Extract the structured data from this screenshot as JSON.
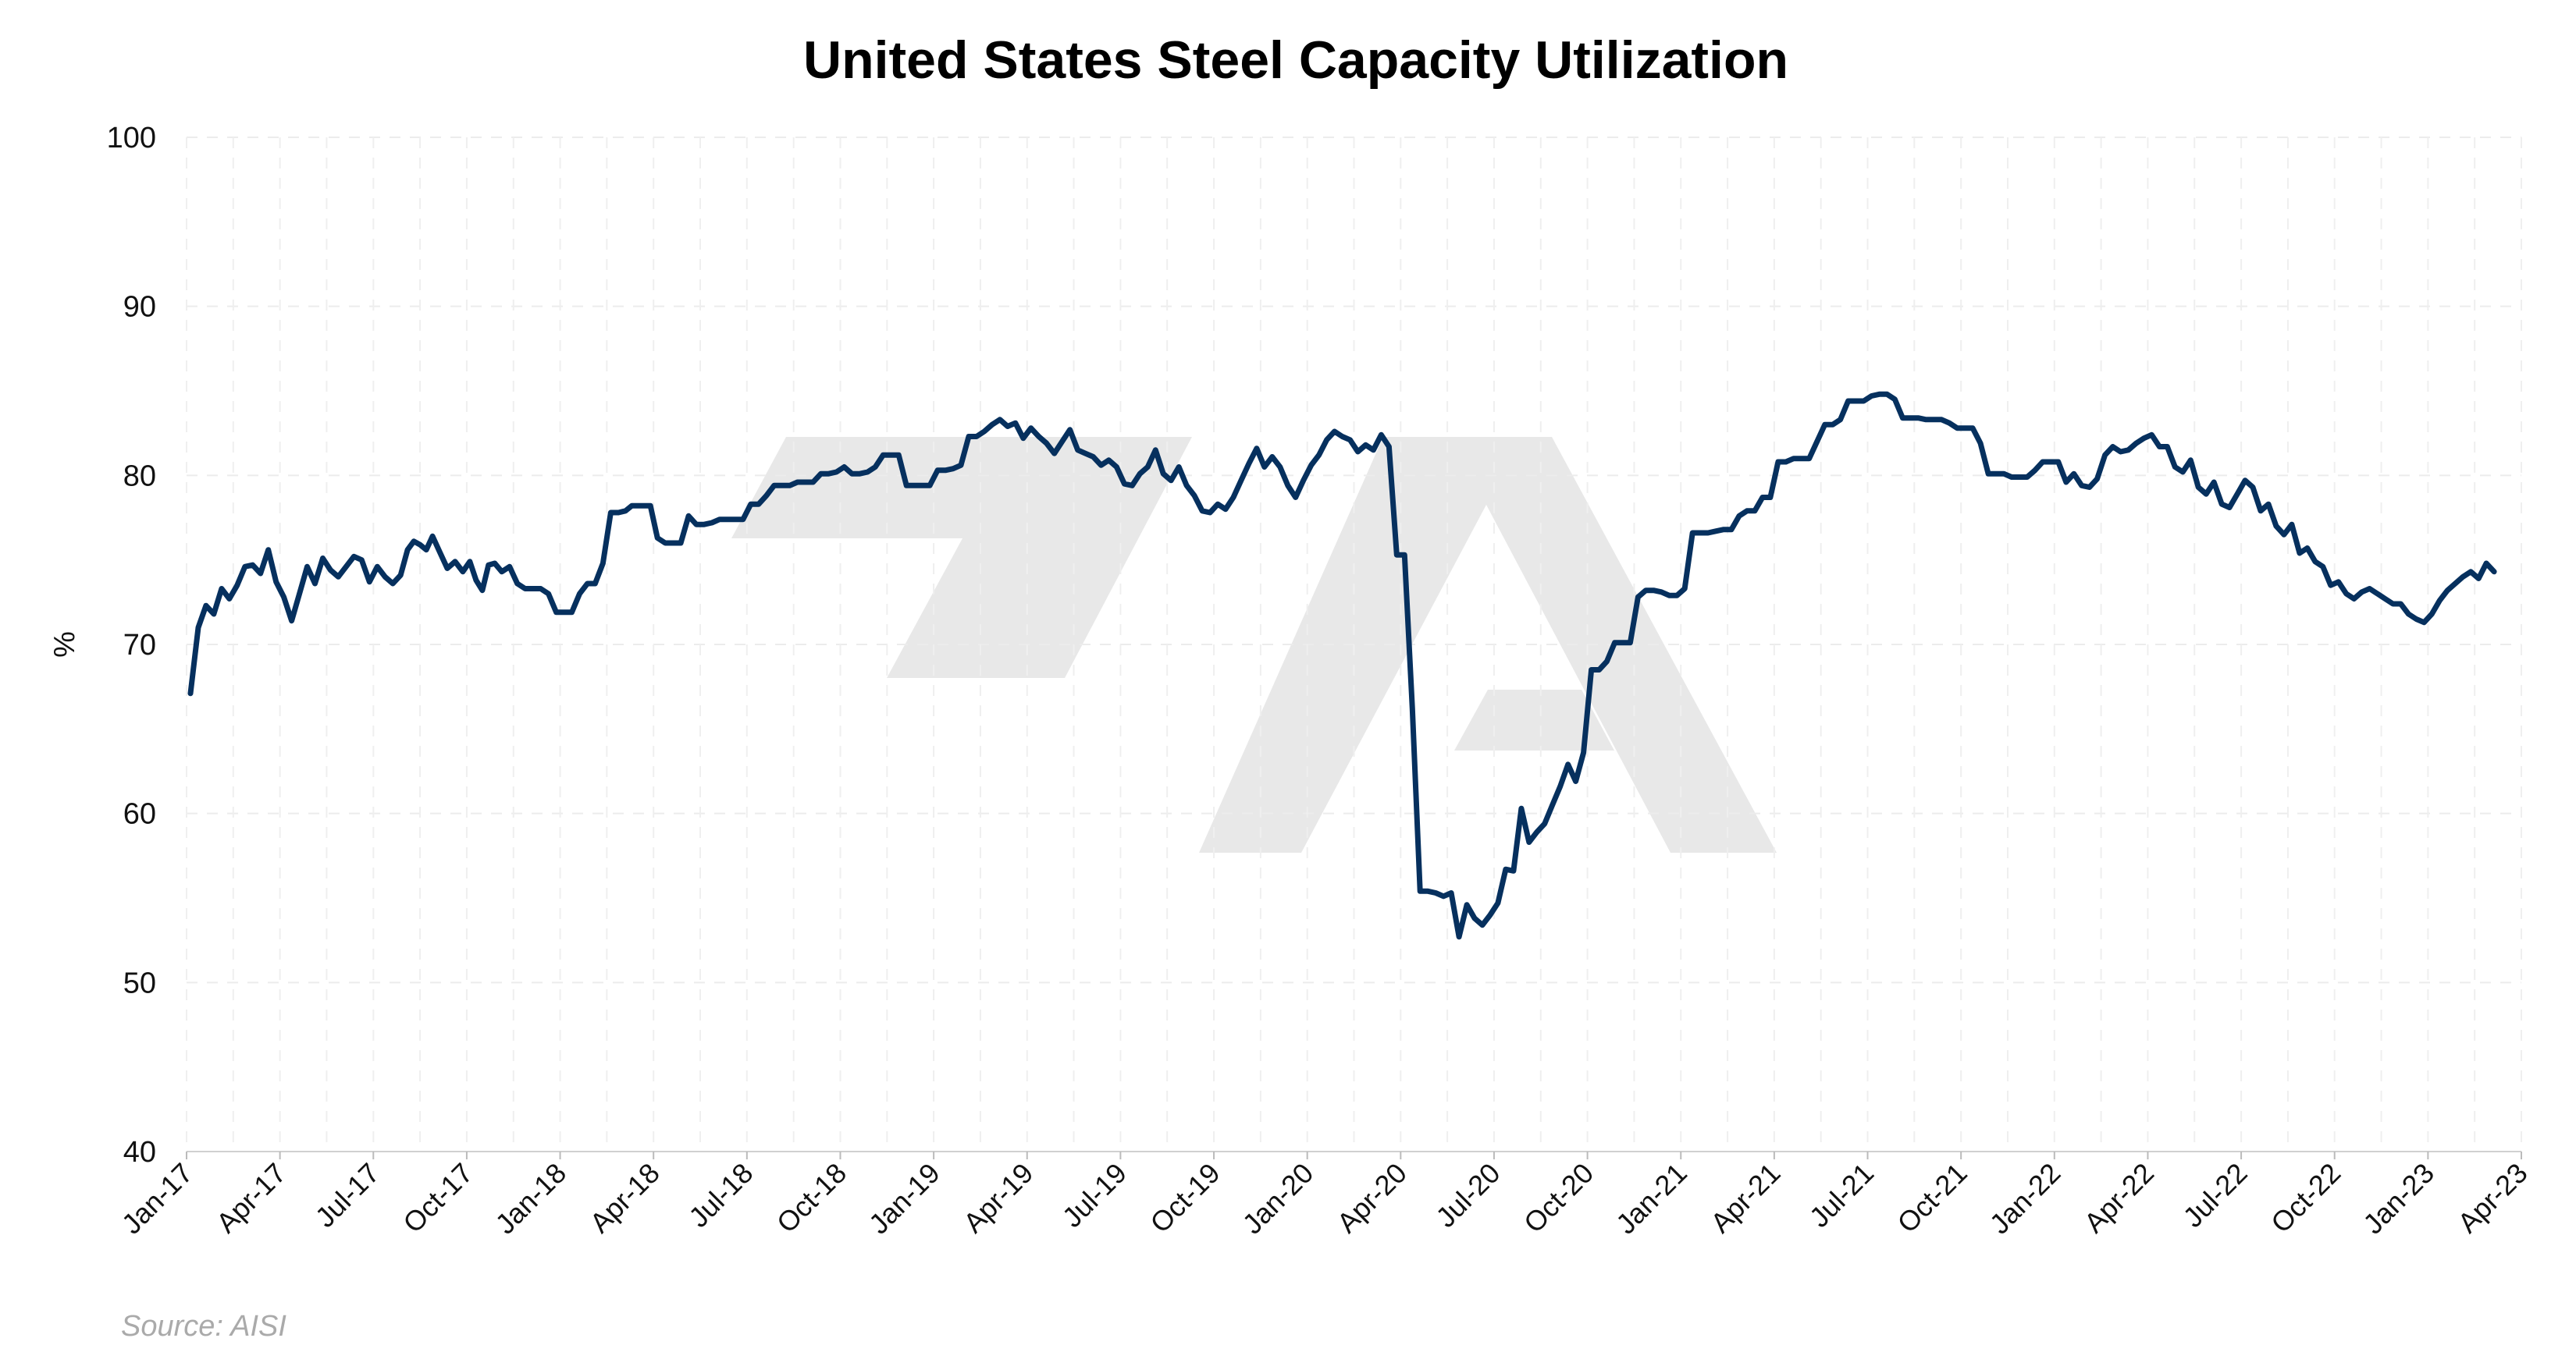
{
  "chart_data": {
    "type": "line",
    "title": "United States Steel Capacity Utilization",
    "xlabel": "",
    "ylabel": "%",
    "ylim": [
      40,
      100
    ],
    "yticks": [
      40,
      50,
      60,
      70,
      80,
      90,
      100
    ],
    "xlim": [
      "2017-01",
      "2023-04"
    ],
    "xticks": [
      {
        "date": "2017-01",
        "label": "Jan-17"
      },
      {
        "date": "2017-04",
        "label": "Apr-17"
      },
      {
        "date": "2017-07",
        "label": "Jul-17"
      },
      {
        "date": "2017-10",
        "label": "Oct-17"
      },
      {
        "date": "2018-01",
        "label": "Jan-18"
      },
      {
        "date": "2018-04",
        "label": "Apr-18"
      },
      {
        "date": "2018-07",
        "label": "Jul-18"
      },
      {
        "date": "2018-10",
        "label": "Oct-18"
      },
      {
        "date": "2019-01",
        "label": "Jan-19"
      },
      {
        "date": "2019-04",
        "label": "Apr-19"
      },
      {
        "date": "2019-07",
        "label": "Jul-19"
      },
      {
        "date": "2019-10",
        "label": "Oct-19"
      },
      {
        "date": "2020-01",
        "label": "Jan-20"
      },
      {
        "date": "2020-04",
        "label": "Apr-20"
      },
      {
        "date": "2020-07",
        "label": "Jul-20"
      },
      {
        "date": "2020-10",
        "label": "Oct-20"
      },
      {
        "date": "2021-01",
        "label": "Jan-21"
      },
      {
        "date": "2021-04",
        "label": "Apr-21"
      },
      {
        "date": "2021-07",
        "label": "Jul-21"
      },
      {
        "date": "2021-10",
        "label": "Oct-21"
      },
      {
        "date": "2022-01",
        "label": "Jan-22"
      },
      {
        "date": "2022-04",
        "label": "Apr-22"
      },
      {
        "date": "2022-07",
        "label": "Jul-22"
      },
      {
        "date": "2022-10",
        "label": "Oct-22"
      },
      {
        "date": "2023-01",
        "label": "Jan-23"
      },
      {
        "date": "2023-04",
        "label": "Apr-23"
      }
    ],
    "grid": true,
    "line_color": "#06305e",
    "series": [
      {
        "weekly_values_by_month": [
          [
            "2017-01",
            [
              67.1,
              71.0,
              72.3,
              71.8
            ]
          ],
          [
            "2017-02",
            [
              73.3,
              72.7,
              73.5,
              74.6
            ]
          ],
          [
            "2017-03",
            [
              74.7,
              74.2,
              75.6,
              73.7
            ]
          ],
          [
            "2017-04",
            [
              72.8,
              71.4,
              73.0,
              74.6
            ]
          ],
          [
            "2017-05",
            [
              73.6,
              75.1,
              74.4,
              74.0
            ]
          ],
          [
            "2017-06",
            [
              74.6,
              75.2,
              75.0,
              73.7
            ]
          ],
          [
            "2017-07",
            [
              74.6,
              74.0,
              73.6,
              74.1
            ]
          ],
          [
            "2017-08",
            [
              75.6,
              76.1,
              75.9,
              75.6,
              76.4
            ]
          ],
          [
            "2017-09",
            [
              75.5,
              74.5,
              74.9,
              74.3
            ]
          ],
          [
            "2017-10",
            [
              74.9,
              73.8,
              73.2,
              74.7,
              74.8
            ]
          ],
          [
            "2017-11",
            [
              74.3,
              74.6,
              73.6,
              73.3
            ]
          ],
          [
            "2017-12",
            [
              73.3,
              73.3,
              73.0,
              71.9
            ]
          ],
          [
            "2018-01",
            [
              71.9,
              71.9,
              73.0,
              73.6
            ]
          ],
          [
            "2018-02",
            [
              73.6,
              74.8,
              77.8,
              77.8
            ]
          ],
          [
            "2018-03",
            [
              77.9,
              78.2,
              78.2,
              78.2,
              78.2
            ]
          ],
          [
            "2018-04",
            [
              76.3,
              76.0,
              76.0,
              76.0
            ]
          ],
          [
            "2018-05",
            [
              77.6,
              77.1,
              77.1,
              77.2
            ]
          ],
          [
            "2018-06",
            [
              77.4,
              77.4,
              77.4,
              77.4
            ]
          ],
          [
            "2018-07",
            [
              78.3,
              78.3,
              78.8,
              79.4
            ]
          ],
          [
            "2018-08",
            [
              79.4,
              79.4,
              79.6,
              79.6
            ]
          ],
          [
            "2018-09",
            [
              79.6,
              80.1,
              80.1,
              80.2
            ]
          ],
          [
            "2018-10",
            [
              80.5,
              80.1,
              80.1,
              80.2
            ]
          ],
          [
            "2018-11",
            [
              80.5,
              81.2,
              81.2,
              81.2
            ]
          ],
          [
            "2018-12",
            [
              79.4,
              79.4,
              79.4,
              79.4
            ]
          ],
          [
            "2019-01",
            [
              80.3,
              80.3,
              80.4,
              80.6
            ]
          ],
          [
            "2019-02",
            [
              82.3,
              82.3,
              82.6,
              83.0
            ]
          ],
          [
            "2019-03",
            [
              83.3,
              82.9,
              83.1,
              82.2
            ]
          ],
          [
            "2019-04",
            [
              82.8,
              82.3,
              81.9,
              81.3
            ]
          ],
          [
            "2019-05",
            [
              82.0,
              82.7,
              81.5,
              81.3
            ]
          ],
          [
            "2019-06",
            [
              81.1,
              80.6,
              80.9,
              80.5
            ]
          ],
          [
            "2019-07",
            [
              79.5,
              79.4,
              80.1,
              80.5
            ]
          ],
          [
            "2019-08",
            [
              81.5,
              80.1,
              79.7,
              80.5
            ]
          ],
          [
            "2019-09",
            [
              79.4,
              78.8,
              77.9,
              77.8
            ]
          ],
          [
            "2019-10",
            [
              78.3,
              78.0,
              78.7,
              79.7
            ]
          ],
          [
            "2019-11",
            [
              80.7,
              81.6,
              80.5,
              81.1
            ]
          ],
          [
            "2019-12",
            [
              80.5,
              79.4,
              78.7,
              79.7
            ]
          ],
          [
            "2020-01",
            [
              80.6,
              81.2,
              82.1,
              82.6
            ]
          ],
          [
            "2020-02",
            [
              82.3,
              82.1,
              81.4,
              81.8
            ]
          ],
          [
            "2020-03",
            [
              81.5,
              82.4,
              81.7,
              75.3
            ]
          ],
          [
            "2020-04",
            [
              75.3,
              66.2,
              55.4,
              55.4
            ]
          ],
          [
            "2020-05",
            [
              55.3,
              55.1,
              55.3,
              52.7
            ]
          ],
          [
            "2020-06",
            [
              54.6,
              53.8,
              53.4,
              54.0
            ]
          ],
          [
            "2020-07",
            [
              54.7,
              56.7,
              56.6,
              60.3
            ]
          ],
          [
            "2020-08",
            [
              58.3,
              58.9,
              59.4,
              60.5
            ]
          ],
          [
            "2020-09",
            [
              61.6,
              62.9,
              61.9,
              63.6
            ]
          ],
          [
            "2020-10",
            [
              68.5,
              68.5,
              69.0,
              70.1
            ]
          ],
          [
            "2020-11",
            [
              70.1,
              70.1,
              72.8,
              73.2
            ]
          ],
          [
            "2020-12",
            [
              73.2,
              73.1,
              72.9,
              72.9
            ]
          ],
          [
            "2021-01",
            [
              73.3,
              76.6,
              76.6,
              76.6
            ]
          ],
          [
            "2021-02",
            [
              76.7,
              76.8,
              76.8,
              77.6
            ]
          ],
          [
            "2021-03",
            [
              77.9,
              77.9,
              78.7,
              78.7
            ]
          ],
          [
            "2021-04",
            [
              80.8,
              80.8,
              81.0,
              81.0
            ]
          ],
          [
            "2021-05",
            [
              81.0,
              82.0,
              83.0,
              83.0
            ]
          ],
          [
            "2021-06",
            [
              83.3,
              84.4,
              84.4,
              84.4
            ]
          ],
          [
            "2021-07",
            [
              84.7,
              84.8,
              84.8,
              84.5
            ]
          ],
          [
            "2021-08",
            [
              83.4,
              83.4,
              83.4,
              83.3
            ]
          ],
          [
            "2021-09",
            [
              83.3,
              83.3,
              83.1,
              82.8
            ]
          ],
          [
            "2021-10",
            [
              82.8,
              82.8,
              81.9,
              80.1
            ]
          ],
          [
            "2021-11",
            [
              80.1,
              80.1,
              79.9,
              79.9
            ]
          ],
          [
            "2021-12",
            [
              79.9,
              80.3,
              80.8,
              80.8
            ]
          ],
          [
            "2022-01",
            [
              80.8,
              79.6,
              80.1,
              79.4
            ]
          ],
          [
            "2022-02",
            [
              79.3,
              79.8,
              81.2,
              81.7
            ]
          ],
          [
            "2022-03",
            [
              81.4,
              81.5,
              81.9,
              82.2
            ]
          ],
          [
            "2022-04",
            [
              82.4,
              81.7,
              81.7,
              80.5
            ]
          ],
          [
            "2022-05",
            [
              80.2,
              80.9,
              79.3,
              78.9
            ]
          ],
          [
            "2022-06",
            [
              79.6,
              78.3,
              78.1,
              78.9
            ]
          ],
          [
            "2022-07",
            [
              79.7,
              79.3,
              77.9,
              78.3
            ]
          ],
          [
            "2022-08",
            [
              77.0,
              76.5,
              77.1,
              75.4
            ]
          ],
          [
            "2022-09",
            [
              75.7,
              74.9,
              74.6,
              73.5
            ]
          ],
          [
            "2022-10",
            [
              73.7,
              73.0,
              72.7,
              73.1
            ]
          ],
          [
            "2022-11",
            [
              73.3,
              73.0,
              72.7,
              72.4
            ]
          ],
          [
            "2022-12",
            [
              72.4,
              71.8,
              71.5,
              71.3
            ]
          ],
          [
            "2023-01",
            [
              71.8,
              72.6,
              73.2
            ]
          ],
          [
            "2023-02",
            [
              74.0,
              74.3,
              73.9,
              74.8
            ]
          ],
          [
            "2023-03",
            [
              74.3
            ]
          ]
        ]
      }
    ],
    "source": "Source: AISI"
  }
}
